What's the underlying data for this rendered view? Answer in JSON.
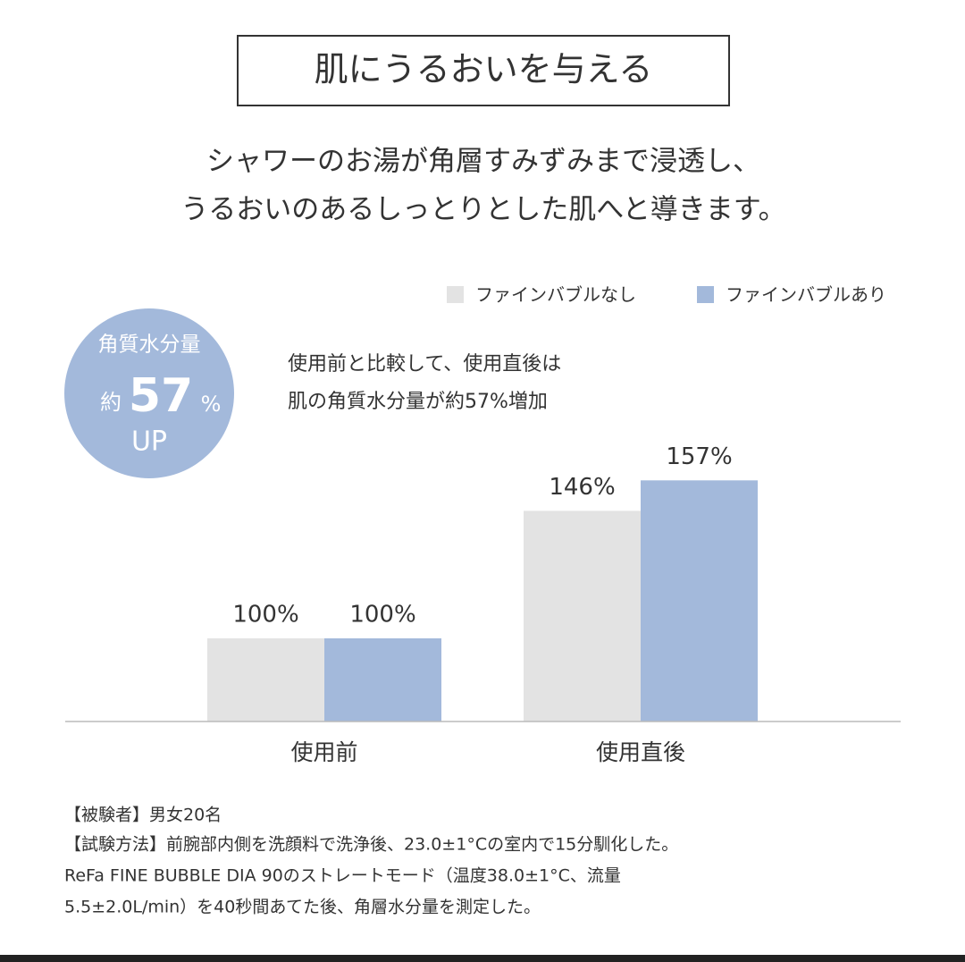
{
  "chart_data": {
    "type": "bar",
    "title": "肌にうるおいを与える",
    "subtitle": [
      "シャワーのお湯が角層すみずみまで浸透し、",
      "うるおいのあるしっとりとした肌へと導きます。"
    ],
    "badge": [
      "角質水分量",
      "約",
      "57",
      "%",
      "UP"
    ],
    "annotation": [
      "使用前と比較して、使用直後は",
      "肌の角質水分量が約57%増加"
    ],
    "categories": [
      "使用前",
      "使用直後"
    ],
    "series": [
      {
        "name": "ファインバブルなし",
        "color": "#e3e3e3",
        "values": [
          100,
          146
        ],
        "value_labels": [
          "100%",
          "146%"
        ]
      },
      {
        "name": "ファインバブルあり",
        "color": "#a3b9db",
        "values": [
          100,
          157
        ],
        "value_labels": [
          "100%",
          "157%"
        ]
      }
    ],
    "ylim": [
      70,
      230
    ],
    "legend": "top-right",
    "footnotes": [
      "【被験者】男女20名",
      "【試験方法】前腕部内側を洗顔料で洗浄後、23.0±1°Cの室内で15分馴化した。",
      "ReFa FINE BUBBLE DIA 90のストレートモード（温度38.0±1°C、流量",
      "5.5±2.0L/min）を40秒間あてた後、角層水分量を測定した。"
    ]
  }
}
